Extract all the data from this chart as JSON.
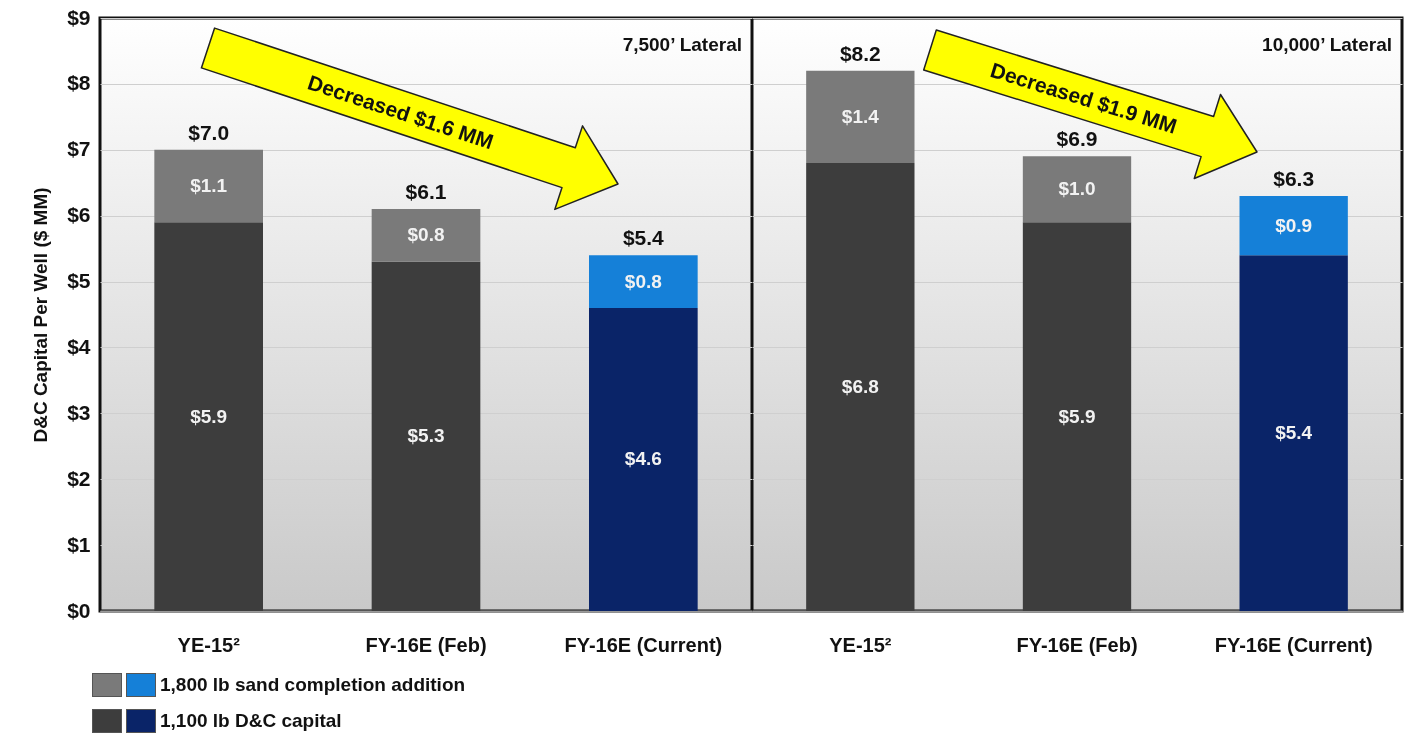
{
  "chart_data": [
    {
      "type": "bar",
      "stacked": true,
      "title": "7,500’ Lateral",
      "ylabel": "D&C Capital Per Well ($ MM)",
      "categories": [
        "YE-15²",
        "FY-16E (Feb)",
        "FY-16E (Current)"
      ],
      "series": [
        {
          "name": "1,100 lb D&C capital",
          "colors": [
            "#3d3d3d",
            "#3d3d3d",
            "#0a2468"
          ],
          "values": [
            5.9,
            5.3,
            4.6
          ],
          "value_labels": [
            "$5.9",
            "$5.3",
            "$4.6"
          ]
        },
        {
          "name": "1,800 lb sand completion addition",
          "colors": [
            "#7a7a7a",
            "#7a7a7a",
            "#1580d8"
          ],
          "values": [
            1.1,
            0.8,
            0.8
          ],
          "value_labels": [
            "$1.1",
            "$0.8",
            "$0.8"
          ]
        }
      ],
      "totals": [
        "$7.0",
        "$6.1",
        "$5.4"
      ],
      "ylim": [
        0,
        9
      ],
      "yticks": [
        {
          "value": 0,
          "label": "$0"
        },
        {
          "value": 1,
          "label": "$1"
        },
        {
          "value": 2,
          "label": "$2"
        },
        {
          "value": 3,
          "label": "$3"
        },
        {
          "value": 4,
          "label": "$4"
        },
        {
          "value": 5,
          "label": "$5"
        },
        {
          "value": 6,
          "label": "$6"
        },
        {
          "value": 7,
          "label": "$7"
        },
        {
          "value": 8,
          "label": "$8"
        },
        {
          "value": 9,
          "label": "$9"
        }
      ],
      "grid": "y",
      "legend": "bottom left",
      "annotations": [
        "Decreased $1.6 MM"
      ]
    },
    {
      "type": "bar",
      "stacked": true,
      "title": "10,000’ Lateral",
      "categories": [
        "YE-15²",
        "FY-16E (Feb)",
        "FY-16E (Current)"
      ],
      "series": [
        {
          "colors": [
            "#3d3d3d",
            "#3d3d3d",
            "#0a2468"
          ],
          "values": [
            6.8,
            5.9,
            5.4
          ],
          "value_labels": [
            "$6.8",
            "$5.9",
            "$5.4"
          ]
        },
        {
          "colors": [
            "#7a7a7a",
            "#7a7a7a",
            "#1580d8"
          ],
          "values": [
            1.4,
            1.0,
            0.9
          ],
          "value_labels": [
            "$1.4",
            "$1.0",
            "$0.9"
          ]
        }
      ],
      "totals": [
        "$8.2",
        "$6.9",
        "$6.3"
      ],
      "ylim": [
        0,
        9
      ],
      "yticks": [
        0,
        1,
        2,
        3,
        4,
        5,
        6,
        7,
        8,
        9
      ],
      "grid": "y",
      "tick_labels": "x",
      "annotations": [
        "Decreased $1.9 MM"
      ]
    }
  ]
}
